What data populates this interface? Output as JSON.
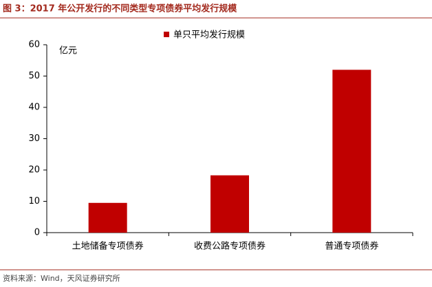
{
  "chart_data": {
    "type": "bar",
    "title": "图 3：2017 年公开发行的不同类型专项债券平均发行规模",
    "y_label": "亿元",
    "categories": [
      "土地储备专项债券",
      "收费公路专项债券",
      "普通专项债券"
    ],
    "series": [
      {
        "name": "单只平均发行规模",
        "color": "#c00000",
        "values": [
          9.5,
          18.3,
          52
        ]
      }
    ],
    "ylim": [
      0,
      60
    ],
    "yticks": [
      0,
      10,
      20,
      30,
      40,
      50,
      60
    ],
    "grid": false,
    "legend": "top",
    "source": "资料来源：Wind，天风证券研究所"
  }
}
